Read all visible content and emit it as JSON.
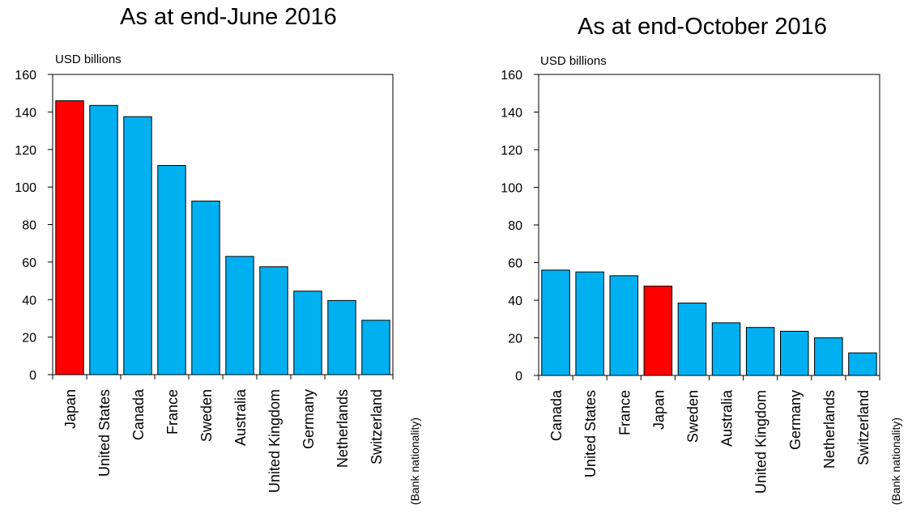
{
  "chart_data": [
    {
      "type": "bar",
      "title": "As at end-June 2016",
      "ylabel": "USD billions",
      "xlabel": "(Bank nationality)",
      "ylim": [
        0,
        160
      ],
      "yticks": [
        0,
        20,
        40,
        60,
        80,
        100,
        120,
        140,
        160
      ],
      "categories": [
        "Japan",
        "United States",
        "Canada",
        "France",
        "Sweden",
        "Australia",
        "United Kingdom",
        "Germany",
        "Netherlands",
        "Switzerland"
      ],
      "values": [
        146,
        143.5,
        137.5,
        111.5,
        92.5,
        63,
        57.5,
        44.5,
        39.5,
        29
      ],
      "highlight": "Japan",
      "colors": {
        "bar": "#00b0f0",
        "highlight": "#ff0000",
        "edge": "#000000"
      },
      "grid": false
    },
    {
      "type": "bar",
      "title": "As at end-October 2016",
      "ylabel": "USD billions",
      "xlabel": "(Bank nationality)",
      "ylim": [
        0,
        160
      ],
      "yticks": [
        0,
        20,
        40,
        60,
        80,
        100,
        120,
        140,
        160
      ],
      "categories": [
        "Canada",
        "United States",
        "France",
        "Japan",
        "Sweden",
        "Australia",
        "United Kingdom",
        "Germany",
        "Netherlands",
        "Switzerland"
      ],
      "values": [
        56,
        55,
        53,
        47.5,
        38.5,
        28,
        25.5,
        23.5,
        20,
        12
      ],
      "highlight": "Japan",
      "colors": {
        "bar": "#00b0f0",
        "highlight": "#ff0000",
        "edge": "#000000"
      },
      "grid": false
    }
  ]
}
